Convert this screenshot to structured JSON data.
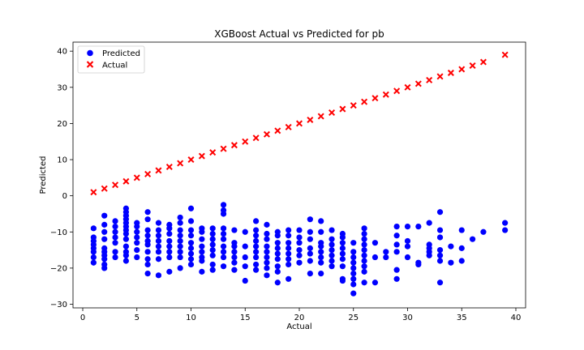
{
  "chart_data": {
    "type": "scatter",
    "title": "XGBoost Actual vs Predicted for pb",
    "xlabel": "Actual",
    "ylabel": "Predicted",
    "xlim": [
      -0.9,
      40.9
    ],
    "ylim": [
      -31.0,
      42.5
    ],
    "xticks": [
      0,
      5,
      10,
      15,
      20,
      25,
      30,
      35,
      40
    ],
    "yticks": [
      -30,
      -20,
      -10,
      0,
      10,
      20,
      30,
      40
    ],
    "grid": false,
    "legend": {
      "placement": "top-left"
    },
    "series": [
      {
        "name": "Predicted",
        "marker": "circle",
        "color": "#0000ff",
        "points": [
          [
            1,
            -9
          ],
          [
            1,
            -11.5
          ],
          [
            1,
            -12.5
          ],
          [
            1,
            -13.5
          ],
          [
            1,
            -14.5
          ],
          [
            1,
            -15.5
          ],
          [
            1,
            -17
          ],
          [
            1,
            -18.5
          ],
          [
            2,
            -5.5
          ],
          [
            2,
            -8
          ],
          [
            2,
            -10
          ],
          [
            2,
            -12
          ],
          [
            2,
            -14.5
          ],
          [
            2,
            -15.5
          ],
          [
            2,
            -16.5
          ],
          [
            2,
            -17.5
          ],
          [
            2,
            -19
          ],
          [
            2,
            -20
          ],
          [
            3,
            -7
          ],
          [
            3,
            -8.5
          ],
          [
            3,
            -10
          ],
          [
            3,
            -11.5
          ],
          [
            3,
            -13
          ],
          [
            3,
            -15.5
          ],
          [
            3,
            -17
          ],
          [
            4,
            -3.5
          ],
          [
            4,
            -4.5
          ],
          [
            4,
            -5.5
          ],
          [
            4,
            -6.5
          ],
          [
            4,
            -7.5
          ],
          [
            4,
            -8.5
          ],
          [
            4,
            -9.5
          ],
          [
            4,
            -10.5
          ],
          [
            4,
            -12
          ],
          [
            4,
            -14
          ],
          [
            4,
            -15.5
          ],
          [
            4,
            -16.5
          ],
          [
            4,
            -18
          ],
          [
            5,
            -7.5
          ],
          [
            5,
            -8.5
          ],
          [
            5,
            -10
          ],
          [
            5,
            -11.5
          ],
          [
            5,
            -13
          ],
          [
            5,
            -15
          ],
          [
            5,
            -17
          ],
          [
            6,
            -4.5
          ],
          [
            6,
            -6.5
          ],
          [
            6,
            -9.5
          ],
          [
            6,
            -11
          ],
          [
            6,
            -12.5
          ],
          [
            6,
            -13.5
          ],
          [
            6,
            -15.5
          ],
          [
            6,
            -17.5
          ],
          [
            6,
            -19
          ],
          [
            6,
            -21.5
          ],
          [
            7,
            -7.5
          ],
          [
            7,
            -9.5
          ],
          [
            7,
            -11
          ],
          [
            7,
            -12.5
          ],
          [
            7,
            -14
          ],
          [
            7,
            -15.5
          ],
          [
            7,
            -17.5
          ],
          [
            7,
            -22
          ],
          [
            8,
            -8
          ],
          [
            8,
            -9
          ],
          [
            8,
            -10.5
          ],
          [
            8,
            -12.5
          ],
          [
            8,
            -14
          ],
          [
            8,
            -15.5
          ],
          [
            8,
            -17
          ],
          [
            8,
            -21
          ],
          [
            9,
            -6
          ],
          [
            9,
            -7.5
          ],
          [
            9,
            -9.5
          ],
          [
            9,
            -11
          ],
          [
            9,
            -12.5
          ],
          [
            9,
            -14
          ],
          [
            9,
            -15.5
          ],
          [
            9,
            -17
          ],
          [
            9,
            -20
          ],
          [
            10,
            -3.5
          ],
          [
            10,
            -7
          ],
          [
            10,
            -9.5
          ],
          [
            10,
            -11
          ],
          [
            10,
            -13
          ],
          [
            10,
            -14.5
          ],
          [
            10,
            -16
          ],
          [
            10,
            -17.5
          ],
          [
            10,
            -19
          ],
          [
            11,
            -9
          ],
          [
            11,
            -10
          ],
          [
            11,
            -12
          ],
          [
            11,
            -14
          ],
          [
            11,
            -15.5
          ],
          [
            11,
            -17
          ],
          [
            11,
            -18
          ],
          [
            11,
            -21
          ],
          [
            12,
            -9
          ],
          [
            12,
            -10.5
          ],
          [
            12,
            -12
          ],
          [
            12,
            -13.5
          ],
          [
            12,
            -15
          ],
          [
            12,
            -16.5
          ],
          [
            12,
            -19
          ],
          [
            12,
            -20.5
          ],
          [
            13,
            -2.5
          ],
          [
            13,
            -4
          ],
          [
            13,
            -5
          ],
          [
            13,
            -9
          ],
          [
            13,
            -10.5
          ],
          [
            13,
            -12
          ],
          [
            13,
            -14
          ],
          [
            13,
            -15.5
          ],
          [
            13,
            -17
          ],
          [
            13,
            -19.5
          ],
          [
            14,
            -9.5
          ],
          [
            14,
            -13
          ],
          [
            14,
            -14
          ],
          [
            14,
            -15.5
          ],
          [
            14,
            -17
          ],
          [
            14,
            -18.5
          ],
          [
            14,
            -20.5
          ],
          [
            15,
            -10
          ],
          [
            15,
            -14
          ],
          [
            15,
            -17
          ],
          [
            15,
            -19.5
          ],
          [
            15,
            -23.5
          ],
          [
            16,
            -7
          ],
          [
            16,
            -9.5
          ],
          [
            16,
            -11
          ],
          [
            16,
            -12.5
          ],
          [
            16,
            -14
          ],
          [
            16,
            -15.5
          ],
          [
            16,
            -17
          ],
          [
            16,
            -19
          ],
          [
            16,
            -20.5
          ],
          [
            17,
            -8
          ],
          [
            17,
            -10.5
          ],
          [
            17,
            -12
          ],
          [
            17,
            -14
          ],
          [
            17,
            -15.5
          ],
          [
            17,
            -17
          ],
          [
            17,
            -18.5
          ],
          [
            17,
            -20
          ],
          [
            17,
            -22
          ],
          [
            18,
            -10
          ],
          [
            18,
            -11
          ],
          [
            18,
            -13
          ],
          [
            18,
            -14.5
          ],
          [
            18,
            -16
          ],
          [
            18,
            -17.5
          ],
          [
            18,
            -19.5
          ],
          [
            18,
            -21
          ],
          [
            18,
            -24
          ],
          [
            19,
            -9.5
          ],
          [
            19,
            -11
          ],
          [
            19,
            -13
          ],
          [
            19,
            -14.5
          ],
          [
            19,
            -16
          ],
          [
            19,
            -17.5
          ],
          [
            19,
            -19
          ],
          [
            19,
            -23
          ],
          [
            20,
            -9.5
          ],
          [
            20,
            -11.5
          ],
          [
            20,
            -13
          ],
          [
            20,
            -15
          ],
          [
            20,
            -16.5
          ],
          [
            20,
            -18.5
          ],
          [
            21,
            -6.5
          ],
          [
            21,
            -10
          ],
          [
            21,
            -12
          ],
          [
            21,
            -14.5
          ],
          [
            21,
            -16
          ],
          [
            21,
            -18
          ],
          [
            21,
            -21.5
          ],
          [
            22,
            -7
          ],
          [
            22,
            -10
          ],
          [
            22,
            -13
          ],
          [
            22,
            -14
          ],
          [
            22,
            -15.5
          ],
          [
            22,
            -17
          ],
          [
            22,
            -18.5
          ],
          [
            22,
            -21.5
          ],
          [
            23,
            -9.5
          ],
          [
            23,
            -12
          ],
          [
            23,
            -13.5
          ],
          [
            23,
            -15
          ],
          [
            23,
            -16.5
          ],
          [
            23,
            -18
          ],
          [
            23,
            -19.5
          ],
          [
            24,
            -10.5
          ],
          [
            24,
            -11.5
          ],
          [
            24,
            -13
          ],
          [
            24,
            -14.5
          ],
          [
            24,
            -16
          ],
          [
            24,
            -17.5
          ],
          [
            24,
            -19.5
          ],
          [
            24,
            -23
          ],
          [
            24,
            -23.5
          ],
          [
            25,
            -13
          ],
          [
            25,
            -15.5
          ],
          [
            25,
            -17
          ],
          [
            25,
            -18.5
          ],
          [
            25,
            -20
          ],
          [
            25,
            -21.5
          ],
          [
            25,
            -23
          ],
          [
            25,
            -24.5
          ],
          [
            25,
            -27
          ],
          [
            26,
            -9
          ],
          [
            26,
            -10.5
          ],
          [
            26,
            -12
          ],
          [
            26,
            -13.5
          ],
          [
            26,
            -15
          ],
          [
            26,
            -16.5
          ],
          [
            26,
            -18
          ],
          [
            26,
            -19.5
          ],
          [
            26,
            -21
          ],
          [
            26,
            -24
          ],
          [
            27,
            -13
          ],
          [
            27,
            -17
          ],
          [
            27,
            -24
          ],
          [
            28,
            -15.5
          ],
          [
            28,
            -17
          ],
          [
            29,
            -8.5
          ],
          [
            29,
            -11
          ],
          [
            29,
            -13.5
          ],
          [
            29,
            -15.5
          ],
          [
            29,
            -20.5
          ],
          [
            29,
            -23
          ],
          [
            30,
            -8.5
          ],
          [
            30,
            -12.5
          ],
          [
            30,
            -14
          ],
          [
            30,
            -17
          ],
          [
            31,
            -8.5
          ],
          [
            31,
            -18.5
          ],
          [
            31,
            -19
          ],
          [
            32,
            -7.5
          ],
          [
            32,
            -13.5
          ],
          [
            32,
            -14.5
          ],
          [
            32,
            -15.5
          ],
          [
            32,
            -16.5
          ],
          [
            33,
            -4.5
          ],
          [
            33,
            -9.5
          ],
          [
            33,
            -11.5
          ],
          [
            33,
            -15
          ],
          [
            33,
            -16.5
          ],
          [
            33,
            -18
          ],
          [
            33,
            -24
          ],
          [
            34,
            -14
          ],
          [
            34,
            -18.5
          ],
          [
            35,
            -9.5
          ],
          [
            35,
            -14.5
          ],
          [
            35,
            -18
          ],
          [
            36,
            -12
          ],
          [
            37,
            -10
          ],
          [
            39,
            -7.5
          ],
          [
            39,
            -9.5
          ]
        ]
      },
      {
        "name": "Actual",
        "marker": "x",
        "color": "#ff0000",
        "points": [
          [
            1,
            1
          ],
          [
            2,
            2
          ],
          [
            3,
            3
          ],
          [
            4,
            4
          ],
          [
            5,
            5
          ],
          [
            6,
            6
          ],
          [
            7,
            7
          ],
          [
            8,
            8
          ],
          [
            9,
            9
          ],
          [
            10,
            10
          ],
          [
            11,
            11
          ],
          [
            12,
            12
          ],
          [
            13,
            13
          ],
          [
            14,
            14
          ],
          [
            15,
            15
          ],
          [
            16,
            16
          ],
          [
            17,
            17
          ],
          [
            18,
            18
          ],
          [
            19,
            19
          ],
          [
            20,
            20
          ],
          [
            21,
            21
          ],
          [
            22,
            22
          ],
          [
            23,
            23
          ],
          [
            24,
            24
          ],
          [
            25,
            25
          ],
          [
            26,
            26
          ],
          [
            27,
            27
          ],
          [
            28,
            28
          ],
          [
            29,
            29
          ],
          [
            30,
            30
          ],
          [
            31,
            31
          ],
          [
            32,
            32
          ],
          [
            33,
            33
          ],
          [
            34,
            34
          ],
          [
            35,
            35
          ],
          [
            36,
            36
          ],
          [
            37,
            37
          ],
          [
            39,
            39
          ]
        ]
      }
    ]
  }
}
